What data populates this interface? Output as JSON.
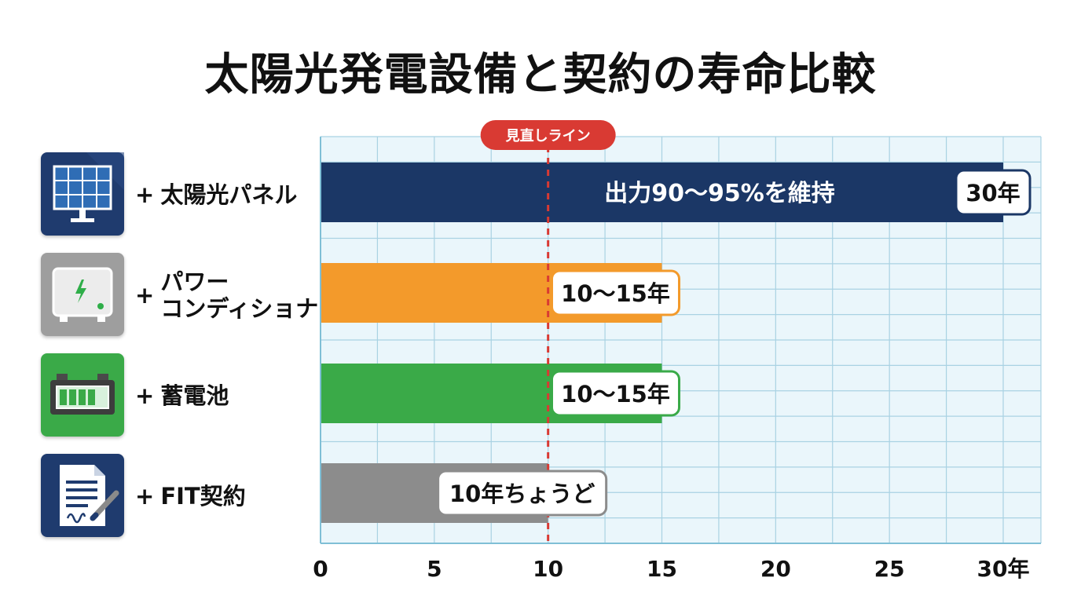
{
  "chart_data": {
    "type": "bar",
    "orientation": "horizontal",
    "title": "太陽光発電設備と契約の寿命比較",
    "categories": [
      "太陽光パネル",
      "パワーコンディショナ",
      "蓄電池",
      "FIT契約"
    ],
    "category_lines": [
      [
        "太陽光パネル"
      ],
      [
        "パワー",
        "コンディショナ"
      ],
      [
        "蓄電池"
      ],
      [
        "FIT契約"
      ]
    ],
    "bullet": "+",
    "values": [
      30,
      15,
      15,
      10
    ],
    "value_labels": [
      "30年",
      "10〜15年",
      "10〜15年",
      "10年ちょうど"
    ],
    "bar_annotations": [
      "出力90〜95%を維持",
      "",
      "",
      ""
    ],
    "colors": [
      "#1b3766",
      "#f39a2b",
      "#3aaa48",
      "#8c8c8c"
    ],
    "icons": [
      "solar-panel-icon",
      "power-conditioner-icon",
      "battery-icon",
      "contract-document-icon"
    ],
    "icon_colors": [
      "#1f3b6e",
      "#9e9e9e",
      "#3aaa48",
      "#1f3b6e"
    ],
    "xlim": [
      0,
      31.5
    ],
    "xticks": [
      0,
      5,
      10,
      15,
      20,
      25,
      30
    ],
    "xtick_labels": [
      "0",
      "5",
      "10",
      "15",
      "20",
      "25",
      "30年"
    ],
    "reference_line": {
      "value": 10,
      "label": "見直しライン",
      "color": "#d93a33"
    },
    "grid": true,
    "grid_color": "#a9d2e3",
    "plot_background": "#eaf6fb"
  }
}
